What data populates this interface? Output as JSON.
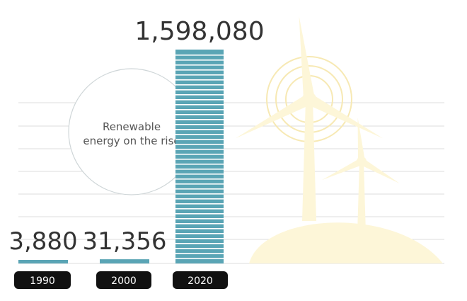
{
  "colors": {
    "bar": "#5aa5b5",
    "bar_stripe": "#ffffff",
    "grid": "#dcdcdc",
    "turbine": "#fdf6d8",
    "turbine_ring": "#f7e9b4",
    "pill": "#111111",
    "circle_stroke": "#cfd6d8"
  },
  "icons": [
    "wind-turbine-icon"
  ],
  "callout": {
    "line1": "Renewable",
    "line2": "energy on the rise"
  },
  "chart_data": {
    "type": "bar",
    "title": "",
    "xlabel": "",
    "ylabel": "",
    "categories": [
      "1990",
      "2000",
      "2020"
    ],
    "values": [
      3880,
      31356,
      1598080
    ],
    "value_labels": [
      "3,880",
      "31,356",
      "1,598,080"
    ],
    "ylim": [
      0,
      1598080
    ],
    "grid": true
  }
}
